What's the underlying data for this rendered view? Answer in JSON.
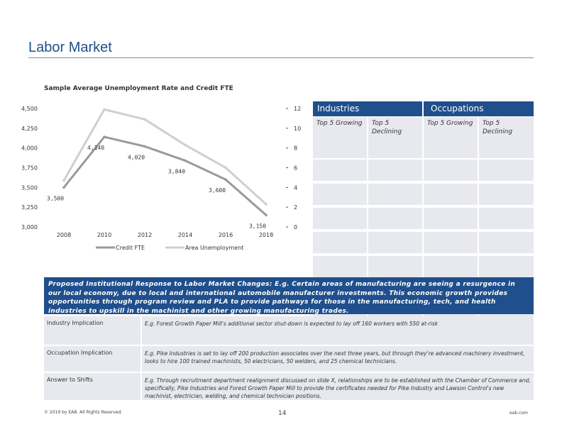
{
  "page": {
    "title": "Labor Market"
  },
  "chart_data": {
    "type": "line",
    "title": "Sample Average Unemployment Rate and Credit FTE",
    "x": [
      2008,
      2010,
      2012,
      2014,
      2016,
      2018
    ],
    "x_ticks": [
      "2008",
      "2010",
      "2012",
      "2014",
      "2016",
      "2018"
    ],
    "y_left_ticks": [
      "4,500",
      "4,250",
      "4,000",
      "3,750",
      "3,500",
      "3,250",
      "3,000"
    ],
    "y_right_ticks": [
      "12",
      "10",
      "8",
      "6",
      "4",
      "2",
      "0"
    ],
    "ylim_left": [
      3000,
      4500
    ],
    "ylim_right": [
      0,
      12
    ],
    "grid": false,
    "legend_placement": "bottom",
    "series": [
      {
        "name": "Credit FTE",
        "axis": "left",
        "x": [
          2008,
          2010,
          2012,
          2014,
          2016,
          2018
        ],
        "values": [
          3500,
          4140,
          4020,
          3840,
          3600,
          3150
        ],
        "data_labels": [
          "3,500",
          "4,140",
          "4,020",
          "3,840",
          "3,600",
          "3,150"
        ],
        "color": "#9a9a9a"
      },
      {
        "name": "Area Unemployment",
        "axis": "right",
        "x": [
          2008,
          2010,
          2012,
          2014,
          2016,
          2018
        ],
        "values": [
          4.7,
          11.9,
          10.9,
          8.3,
          6.0,
          2.3
        ],
        "color": "#cfcfcf"
      }
    ]
  },
  "grid": {
    "industries_header": "Industries",
    "occupations_header": "Occupations",
    "sub_headers": [
      "Top 5 Growing",
      "Top 5 Declining",
      "Top 5 Growing",
      "Top 5 Declining"
    ]
  },
  "response": {
    "heading": "Proposed Institutional Response to Labor Market Changes: E.g. Certain areas of manufacturing are seeing a resurgence in our local economy, due to local and international automobile manufacturer investments. This economic growth provides opportunities through program review and PLA to provide pathways for those in the manufacturing, tech, and health industries to upskill in the machinist and other growing manufacturing trades.",
    "rows": [
      {
        "label": "Industry Implication",
        "text": "E.g. Forest Growth Paper Mill's additional sector shut-down is expected to lay off 160 workers with 550 at-risk"
      },
      {
        "label": "Occupation Implication",
        "text": "E.g. Pike Industries is set to lay off 200 production associates over the next three years, but through they're advanced machinery investment, looks to hire 100 trained machinists, 50 electricians, 50 welders, and 25 chemical technicians."
      },
      {
        "label": "Answer to Shifts",
        "text": "E.g. Through recruitment department realignment discussed on slide X, relationships are to be established with the Chamber of Commerce and, specifically, Pike Industries and Forest Growth Paper Mill to provide the certificates needed for Pike Industry and Lawson Control's new machinist, electrician, welding, and chemical technician positions."
      }
    ]
  },
  "footer": {
    "copyright": "© 2019 by EAB. All Rights Reserved.",
    "page_number": "14",
    "site": "eab.com"
  }
}
